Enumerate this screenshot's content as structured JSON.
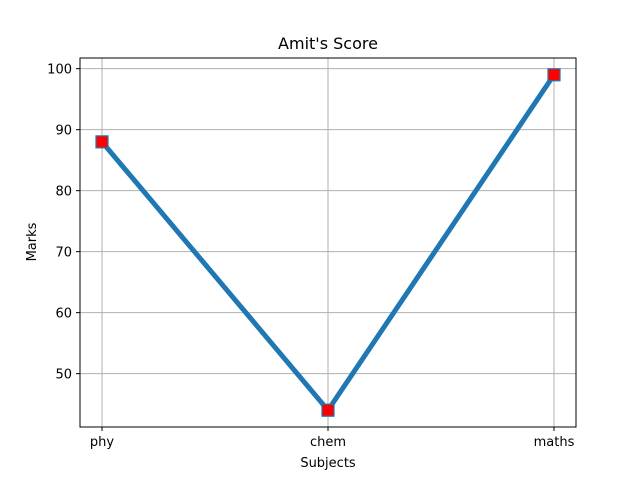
{
  "chart_data": {
    "type": "line",
    "title": "Amit's  Score",
    "xlabel": "Subjects",
    "ylabel": "Marks",
    "categories": [
      "phy",
      "chem",
      "maths"
    ],
    "series": [
      {
        "values": [
          88,
          44,
          99
        ],
        "color": "#1f77b4",
        "marker": "square",
        "marker_color": "#ff0000"
      }
    ],
    "ylim": [
      41.25,
      101.75
    ],
    "yticks": [
      50,
      60,
      70,
      80,
      90,
      100
    ],
    "grid": true
  }
}
